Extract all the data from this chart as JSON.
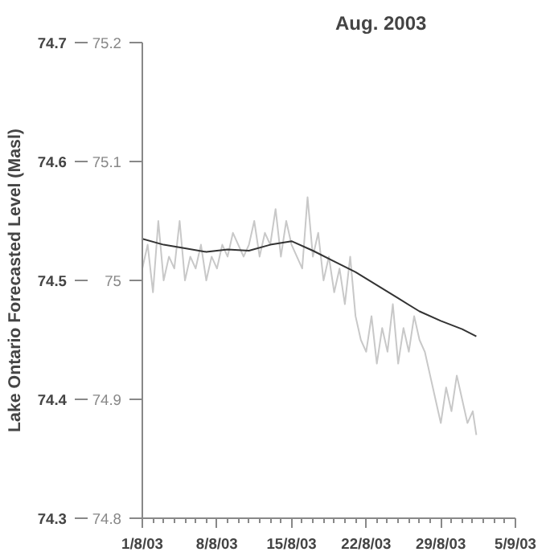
{
  "chart_data": {
    "type": "line",
    "title": "Aug. 2003",
    "ylabel": "Lake Ontario Forecasted Level (Masl)",
    "xlim": [
      "2003-08-01",
      "2003-09-05"
    ],
    "xticks": [
      {
        "value": "2003-08-01",
        "label": "1/8/03"
      },
      {
        "value": "2003-08-08",
        "label": "8/8/03"
      },
      {
        "value": "2003-08-15",
        "label": "15/8/03"
      },
      {
        "value": "2003-08-22",
        "label": "22/8/03"
      },
      {
        "value": "2003-08-29",
        "label": "29/8/03"
      },
      {
        "value": "2003-09-05",
        "label": "5/9/03"
      }
    ],
    "ylim": [
      74.3,
      74.7
    ],
    "yticks": [
      74.3,
      74.4,
      74.5,
      74.6,
      74.7
    ],
    "y2lim": [
      74.8,
      75.2
    ],
    "y2ticks": [
      74.8,
      74.9,
      75,
      75.1,
      75.2
    ],
    "grid": false,
    "series": [
      {
        "color": "#c8c8c8",
        "x": [
          "2003-08-01T00:00",
          "2003-08-01T12:00",
          "2003-08-02T00:00",
          "2003-08-02T12:00",
          "2003-08-03T00:00",
          "2003-08-03T12:00",
          "2003-08-04T00:00",
          "2003-08-04T12:00",
          "2003-08-05T00:00",
          "2003-08-05T12:00",
          "2003-08-06T00:00",
          "2003-08-06T12:00",
          "2003-08-07T00:00",
          "2003-08-07T12:00",
          "2003-08-08T00:00",
          "2003-08-08T12:00",
          "2003-08-09T00:00",
          "2003-08-09T12:00",
          "2003-08-10T00:00",
          "2003-08-10T12:00",
          "2003-08-11T00:00",
          "2003-08-11T12:00",
          "2003-08-12T00:00",
          "2003-08-12T12:00",
          "2003-08-13T00:00",
          "2003-08-13T12:00",
          "2003-08-14T00:00",
          "2003-08-14T12:00",
          "2003-08-15T00:00",
          "2003-08-15T12:00",
          "2003-08-16T00:00",
          "2003-08-16T12:00",
          "2003-08-17T00:00",
          "2003-08-17T12:00",
          "2003-08-18T00:00",
          "2003-08-18T12:00",
          "2003-08-19T00:00",
          "2003-08-19T12:00",
          "2003-08-20T00:00",
          "2003-08-20T12:00",
          "2003-08-21T00:00",
          "2003-08-21T12:00",
          "2003-08-22T00:00",
          "2003-08-22T12:00",
          "2003-08-23T00:00",
          "2003-08-23T12:00",
          "2003-08-24T00:00",
          "2003-08-24T12:00",
          "2003-08-25T00:00",
          "2003-08-25T12:00",
          "2003-08-26T00:00",
          "2003-08-26T12:00",
          "2003-08-27T00:00",
          "2003-08-27T12:00",
          "2003-08-28T00:00",
          "2003-08-28T12:00",
          "2003-08-29T00:00",
          "2003-08-29T12:00",
          "2003-08-30T00:00",
          "2003-08-30T12:00",
          "2003-08-31T00:00",
          "2003-08-31T12:00",
          "2003-09-01T00:00",
          "2003-09-01T08:00"
        ],
        "values": [
          74.51,
          74.53,
          74.49,
          74.55,
          74.5,
          74.52,
          74.51,
          74.55,
          74.5,
          74.52,
          74.51,
          74.53,
          74.5,
          74.52,
          74.51,
          74.53,
          74.52,
          74.54,
          74.53,
          74.52,
          74.53,
          74.55,
          74.52,
          74.54,
          74.53,
          74.56,
          74.52,
          74.55,
          74.53,
          74.52,
          74.51,
          74.57,
          74.52,
          74.54,
          74.5,
          74.52,
          74.49,
          74.51,
          74.48,
          74.52,
          74.47,
          74.45,
          74.44,
          74.47,
          74.43,
          74.46,
          74.44,
          74.48,
          74.43,
          74.46,
          74.44,
          74.47,
          74.45,
          74.44,
          74.42,
          74.4,
          74.38,
          74.41,
          74.39,
          74.42,
          74.4,
          74.38,
          74.39,
          74.37
        ]
      },
      {
        "color": "#333333",
        "x": [
          "2003-08-01T00:00",
          "2003-08-03T00:00",
          "2003-08-05T00:00",
          "2003-08-07T00:00",
          "2003-08-09T00:00",
          "2003-08-11T00:00",
          "2003-08-13T00:00",
          "2003-08-15T00:00",
          "2003-08-17T00:00",
          "2003-08-19T00:00",
          "2003-08-21T00:00",
          "2003-08-23T00:00",
          "2003-08-25T00:00",
          "2003-08-27T00:00",
          "2003-08-29T00:00",
          "2003-08-31T00:00",
          "2003-09-01T08:00"
        ],
        "values": [
          74.535,
          74.53,
          74.527,
          74.524,
          74.526,
          74.525,
          74.53,
          74.533,
          74.525,
          74.516,
          74.507,
          74.496,
          74.485,
          74.474,
          74.466,
          74.459,
          74.453
        ]
      }
    ]
  }
}
